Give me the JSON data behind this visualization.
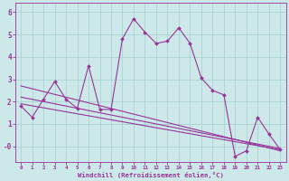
{
  "title": "",
  "xlabel": "Windchill (Refroidissement éolien,°C)",
  "ylabel": "",
  "bg_color": "#cce8e8",
  "line_color": "#993399",
  "grid_color": "#aad4d4",
  "axis_color": "#993399",
  "tick_color": "#993399",
  "x_ticks": [
    0,
    1,
    2,
    3,
    4,
    5,
    6,
    7,
    8,
    9,
    10,
    11,
    12,
    13,
    14,
    15,
    16,
    17,
    18,
    19,
    20,
    21,
    22,
    23
  ],
  "y_ticks": [
    0,
    1,
    2,
    3,
    4,
    5,
    6
  ],
  "ylim": [
    -0.7,
    6.4
  ],
  "xlim": [
    -0.5,
    23.5
  ],
  "series1": [
    1.8,
    1.3,
    2.1,
    2.9,
    2.1,
    1.7,
    3.6,
    1.65,
    1.65,
    4.8,
    5.7,
    5.1,
    4.6,
    4.7,
    5.3,
    4.6,
    3.05,
    2.5,
    2.3,
    -0.45,
    -0.2,
    1.3,
    0.55,
    -0.15
  ],
  "series2_x": [
    0,
    23
  ],
  "series2_y": [
    2.7,
    -0.2
  ],
  "series3_x": [
    0,
    23
  ],
  "series3_y": [
    2.2,
    -0.1
  ],
  "series4_x": [
    0,
    23
  ],
  "series4_y": [
    1.9,
    -0.15
  ]
}
